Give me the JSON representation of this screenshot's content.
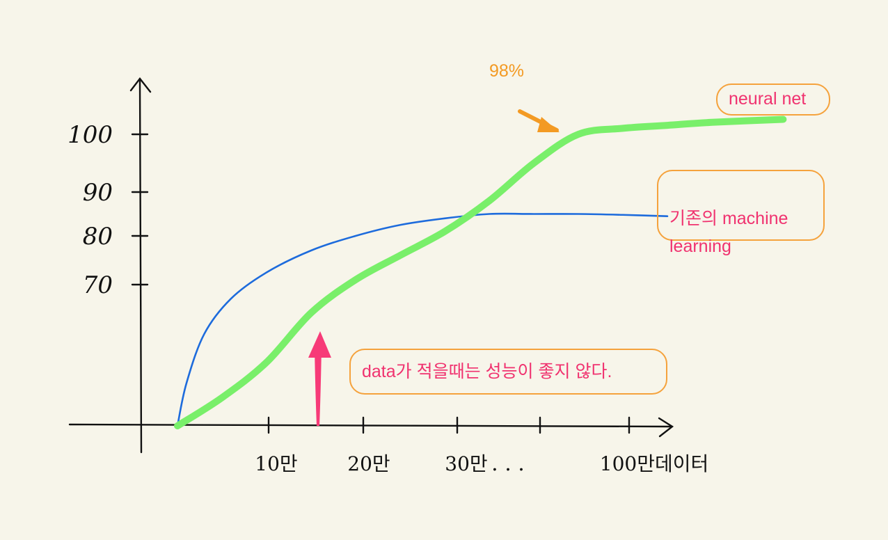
{
  "chart_data": {
    "type": "line",
    "x_tick_labels": [
      "10만",
      "20만",
      "30만",
      "100만데이터"
    ],
    "x_ellipsis": ". . .",
    "y_ticks": [
      70,
      80,
      90,
      100
    ],
    "series": [
      {
        "name": "neural net",
        "color": "#79ef6a",
        "points": [
          [
            0.0,
            50
          ],
          [
            0.5,
            54
          ],
          [
            1.0,
            59
          ],
          [
            1.5,
            66
          ],
          [
            2.0,
            71
          ],
          [
            2.5,
            76
          ],
          [
            3.0,
            81
          ],
          [
            3.5,
            88
          ],
          [
            4.0,
            95
          ],
          [
            4.5,
            100
          ],
          [
            5.0,
            101
          ],
          [
            5.5,
            101.5
          ],
          [
            6.0,
            102
          ],
          [
            6.8,
            102.5
          ]
        ]
      },
      {
        "name": "기존의 machine\nlearning",
        "color": "#1d6bdc",
        "points": [
          [
            0.0,
            50
          ],
          [
            0.1,
            56
          ],
          [
            0.3,
            63
          ],
          [
            0.6,
            68
          ],
          [
            1.0,
            72.5
          ],
          [
            1.5,
            77
          ],
          [
            2.0,
            80
          ],
          [
            2.5,
            82.5
          ],
          [
            3.0,
            84
          ],
          [
            3.5,
            85
          ],
          [
            4.0,
            85
          ],
          [
            4.5,
            85
          ],
          [
            5.0,
            84.8
          ],
          [
            5.5,
            84.5
          ]
        ]
      }
    ],
    "annotations": [
      {
        "text": "98%",
        "color": "#f39a23"
      },
      {
        "text": "data가 적을때는 성능이 좋지 않다.",
        "color": "#f0326f"
      }
    ]
  }
}
